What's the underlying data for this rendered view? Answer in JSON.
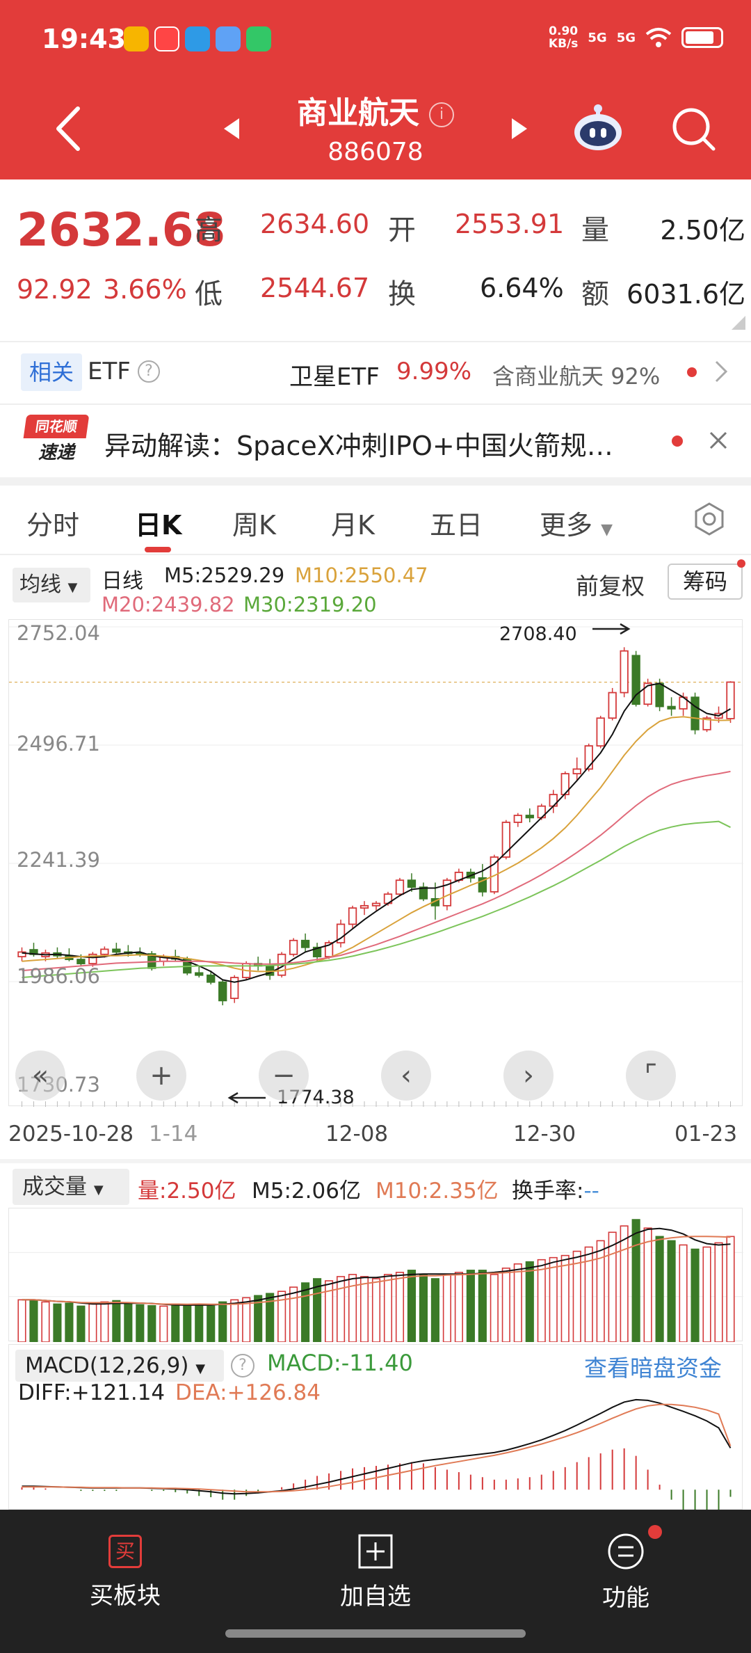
{
  "status_bar": {
    "time": "19:43",
    "net_speed_top": "0.90",
    "net_speed_bottom": "KB/s",
    "signal1": "5G",
    "signal2": "5G"
  },
  "header": {
    "title": "商业航天",
    "code": "886078",
    "info_icon": "i"
  },
  "quote": {
    "price": "2632.68",
    "change": "92.92",
    "change_pct": "3.66%",
    "high_label": "高",
    "high": "2634.60",
    "open_label": "开",
    "open": "2553.91",
    "volume_label": "量",
    "volume": "2.50亿",
    "low_label": "低",
    "low": "2544.67",
    "turnover_label": "换",
    "turnover": "6.64%",
    "amount_label": "额",
    "amount": "6031.6亿"
  },
  "etf": {
    "tag": "相关",
    "label": "ETF",
    "name": "卫星ETF",
    "pct": "9.99%",
    "contain": "含商业航天",
    "contain_pct": "92%"
  },
  "news": {
    "logo_top": "同花顺",
    "logo_bottom": "速递",
    "text": "异动解读：SpaceX冲刺IPO+中国火箭规…"
  },
  "tabs": [
    "分时",
    "日K",
    "周K",
    "月K",
    "五日",
    "更多"
  ],
  "ma_bar": {
    "selector": "均线",
    "period": "日线",
    "m5": "M5:2529.29",
    "m10": "M10:2550.47",
    "m20": "M20:2439.82",
    "m30": "M30:2319.20",
    "adjust": "前复权",
    "chip": "筹码"
  },
  "main_chart": {
    "y_labels": [
      "2752.04",
      "2496.71",
      "2241.39",
      "1986.06",
      "1730.73"
    ],
    "high_annotation": "2708.40",
    "low_annotation": "1774.38",
    "x_labels": [
      "2025-10-28",
      "1-14",
      "12-08",
      "12-30",
      "01-23"
    ]
  },
  "volume_bar": {
    "selector": "成交量",
    "vol": "量:2.50亿",
    "m5": "M5:2.06亿",
    "m10": "M10:2.35亿",
    "turnover": "换手率:",
    "turnover_val": "--"
  },
  "macd_bar": {
    "selector": "MACD(12,26,9)",
    "macd": "MACD:-11.40",
    "link": "查看暗盘资金",
    "diff": "DIFF:+121.14",
    "dea": "DEA:+126.84"
  },
  "bottom_nav": {
    "buy_icon": "买",
    "buy": "买板块",
    "add": "加自选",
    "func": "功能"
  },
  "colors": {
    "brand": "#e23c3a",
    "up": "#d4393a",
    "down": "#3b7a27",
    "m10": "#d9a23b",
    "m20": "#e06a7a",
    "m30": "#7cc45a"
  },
  "chart_data": {
    "type": "candlestick",
    "candles": [
      [
        2040,
        2060,
        2030,
        2050
      ],
      [
        2055,
        2070,
        2040,
        2045
      ],
      [
        2040,
        2055,
        2030,
        2048
      ],
      [
        2048,
        2060,
        2035,
        2042
      ],
      [
        2042,
        2058,
        2030,
        2034
      ],
      [
        2034,
        2045,
        2020,
        2025
      ],
      [
        2025,
        2050,
        2018,
        2045
      ],
      [
        2045,
        2062,
        2038,
        2056
      ],
      [
        2056,
        2070,
        2045,
        2050
      ],
      [
        2050,
        2065,
        2040,
        2048
      ],
      [
        2048,
        2060,
        2040,
        2046
      ],
      [
        2046,
        2052,
        2010,
        2015
      ],
      [
        2030,
        2045,
        2020,
        2040
      ],
      [
        2040,
        2055,
        2030,
        2035
      ],
      [
        2035,
        2040,
        2000,
        2005
      ],
      [
        2005,
        2020,
        1995,
        2000
      ],
      [
        2000,
        2010,
        1980,
        1985
      ],
      [
        1985,
        1990,
        1935,
        1945
      ],
      [
        1950,
        2000,
        1940,
        1995
      ],
      [
        1995,
        2030,
        1990,
        2025
      ],
      [
        2025,
        2040,
        2010,
        2020
      ],
      [
        2020,
        2035,
        1990,
        2000
      ],
      [
        2000,
        2050,
        1995,
        2045
      ],
      [
        2045,
        2080,
        2040,
        2075
      ],
      [
        2075,
        2090,
        2050,
        2060
      ],
      [
        2060,
        2070,
        2030,
        2040
      ],
      [
        2040,
        2075,
        2035,
        2070
      ],
      [
        2070,
        2120,
        2060,
        2110
      ],
      [
        2110,
        2150,
        2100,
        2145
      ],
      [
        2145,
        2160,
        2130,
        2150
      ],
      [
        2150,
        2160,
        2140,
        2155
      ],
      [
        2155,
        2180,
        2150,
        2175
      ],
      [
        2175,
        2210,
        2170,
        2205
      ],
      [
        2205,
        2220,
        2180,
        2190
      ],
      [
        2190,
        2200,
        2160,
        2165
      ],
      [
        2165,
        2200,
        2120,
        2150
      ],
      [
        2150,
        2210,
        2140,
        2205
      ],
      [
        2205,
        2230,
        2200,
        2222
      ],
      [
        2222,
        2230,
        2200,
        2210
      ],
      [
        2210,
        2240,
        2170,
        2180
      ],
      [
        2180,
        2260,
        2175,
        2255
      ],
      [
        2255,
        2335,
        2250,
        2330
      ],
      [
        2330,
        2350,
        2320,
        2345
      ],
      [
        2345,
        2360,
        2330,
        2340
      ],
      [
        2340,
        2370,
        2335,
        2365
      ],
      [
        2365,
        2400,
        2350,
        2390
      ],
      [
        2390,
        2440,
        2380,
        2435
      ],
      [
        2435,
        2470,
        2420,
        2445
      ],
      [
        2445,
        2500,
        2440,
        2495
      ],
      [
        2495,
        2560,
        2490,
        2555
      ],
      [
        2555,
        2620,
        2550,
        2610
      ],
      [
        2610,
        2708,
        2600,
        2700
      ],
      [
        2690,
        2700,
        2580,
        2585
      ],
      [
        2585,
        2640,
        2580,
        2630
      ],
      [
        2630,
        2640,
        2570,
        2580
      ],
      [
        2580,
        2600,
        2560,
        2575
      ],
      [
        2575,
        2610,
        2560,
        2600
      ],
      [
        2600,
        2610,
        2520,
        2530
      ],
      [
        2530,
        2560,
        2525,
        2555
      ],
      [
        2555,
        2580,
        2545,
        2565
      ],
      [
        2553.91,
        2634.6,
        2544.67,
        2632.68
      ]
    ],
    "series": [
      {
        "name": "M5",
        "values": [
          2048,
          2046,
          2044,
          2045,
          2043,
          2040,
          2038,
          2040,
          2045,
          2048,
          2050,
          2042,
          2038,
          2036,
          2030,
          2020,
          2008,
          1990,
          1985,
          1990,
          1998,
          2005,
          2018,
          2035,
          2050,
          2058,
          2065,
          2080,
          2100,
          2120,
          2138,
          2155,
          2172,
          2185,
          2188,
          2188,
          2195,
          2205,
          2215,
          2225,
          2240,
          2265,
          2290,
          2315,
          2340,
          2365,
          2392,
          2420,
          2450,
          2480,
          2520,
          2570,
          2605,
          2625,
          2630,
          2615,
          2600,
          2580,
          2565,
          2560,
          2575
        ]
      },
      {
        "name": "M10",
        "values": [
          2030,
          2032,
          2034,
          2036,
          2038,
          2040,
          2041,
          2042,
          2042,
          2043,
          2044,
          2043,
          2041,
          2039,
          2036,
          2032,
          2028,
          2022,
          2015,
          2010,
          2008,
          2008,
          2010,
          2015,
          2022,
          2030,
          2038,
          2048,
          2060,
          2075,
          2090,
          2105,
          2120,
          2135,
          2148,
          2160,
          2172,
          2183,
          2194,
          2204,
          2215,
          2228,
          2242,
          2258,
          2275,
          2295,
          2318,
          2345,
          2375,
          2405,
          2440,
          2475,
          2505,
          2530,
          2548,
          2556,
          2558,
          2555,
          2552,
          2550,
          2550.47
        ]
      },
      {
        "name": "M20",
        "values": [
          2010,
          2012,
          2014,
          2016,
          2018,
          2020,
          2022,
          2024,
          2026,
          2027,
          2028,
          2029,
          2030,
          2030,
          2030,
          2030,
          2029,
          2028,
          2026,
          2025,
          2024,
          2024,
          2025,
          2027,
          2030,
          2034,
          2038,
          2043,
          2050,
          2058,
          2066,
          2075,
          2084,
          2094,
          2104,
          2114,
          2124,
          2134,
          2144,
          2154,
          2165,
          2177,
          2190,
          2203,
          2217,
          2232,
          2248,
          2265,
          2283,
          2302,
          2323,
          2345,
          2366,
          2385,
          2400,
          2412,
          2420,
          2426,
          2431,
          2435,
          2439.82
        ]
      },
      {
        "name": "M30",
        "values": [
          1995,
          1997,
          1999,
          2001,
          2003,
          2005,
          2007,
          2009,
          2011,
          2013,
          2015,
          2016,
          2017,
          2018,
          2019,
          2020,
          2020,
          2020,
          2020,
          2020,
          2020,
          2021,
          2022,
          2024,
          2026,
          2029,
          2032,
          2036,
          2041,
          2047,
          2053,
          2060,
          2067,
          2075,
          2083,
          2091,
          2100,
          2109,
          2118,
          2127,
          2137,
          2147,
          2158,
          2169,
          2181,
          2193,
          2206,
          2220,
          2234,
          2248,
          2263,
          2278,
          2291,
          2303,
          2313,
          2320,
          2325,
          2328,
          2330,
          2332,
          2319.2
        ]
      }
    ],
    "volume": [
      1.0,
      1.0,
      0.95,
      0.9,
      0.92,
      0.85,
      0.9,
      0.95,
      0.98,
      0.9,
      0.88,
      0.86,
      0.85,
      0.9,
      0.88,
      0.9,
      0.85,
      0.95,
      1.0,
      1.05,
      1.1,
      1.15,
      1.2,
      1.3,
      1.4,
      1.5,
      1.45,
      1.55,
      1.6,
      1.55,
      1.5,
      1.6,
      1.65,
      1.7,
      1.6,
      1.5,
      1.6,
      1.65,
      1.7,
      1.7,
      1.6,
      1.75,
      1.85,
      1.9,
      1.95,
      2.0,
      2.05,
      2.15,
      2.25,
      2.4,
      2.6,
      2.75,
      2.9,
      2.7,
      2.5,
      2.4,
      2.3,
      2.2,
      2.25,
      2.35,
      2.5
    ],
    "macd": {
      "diff": [
        10,
        10,
        9,
        8,
        7,
        6,
        5,
        5,
        5,
        5,
        5,
        4,
        3,
        2,
        0,
        -3,
        -6,
        -10,
        -12,
        -11,
        -9,
        -6,
        -3,
        2,
        8,
        15,
        22,
        30,
        38,
        46,
        54,
        62,
        70,
        78,
        84,
        88,
        92,
        96,
        100,
        104,
        108,
        115,
        124,
        134,
        145,
        158,
        172,
        188,
        205,
        222,
        240,
        255,
        262,
        260,
        252,
        240,
        228,
        215,
        200,
        180,
        121.14
      ],
      "dea": [
        8,
        8,
        8,
        8,
        7,
        7,
        6,
        6,
        6,
        5,
        5,
        5,
        4,
        4,
        3,
        2,
        0,
        -2,
        -4,
        -6,
        -6,
        -6,
        -5,
        -3,
        0,
        4,
        9,
        15,
        21,
        28,
        35,
        42,
        49,
        56,
        63,
        70,
        76,
        82,
        88,
        94,
        100,
        107,
        115,
        124,
        133,
        143,
        154,
        166,
        179,
        193,
        208,
        222,
        235,
        244,
        248,
        248,
        245,
        240,
        232,
        220,
        126.84
      ]
    }
  }
}
